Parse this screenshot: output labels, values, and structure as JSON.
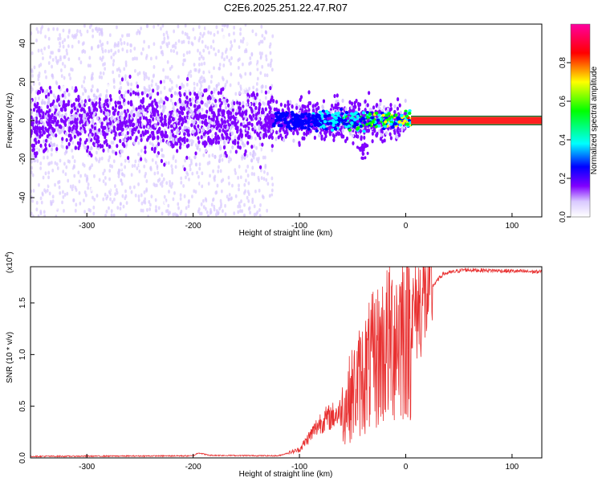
{
  "chart_data": [
    {
      "type": "heatmap",
      "title": "C2E6.2025.251.22.47.R07",
      "xlabel": "Height of straight line (km)",
      "ylabel": "Frequency (Hz)",
      "xlim": [
        -353,
        128
      ],
      "ylim": [
        -50,
        50
      ],
      "xticks": [
        -300,
        -200,
        -100,
        0,
        100
      ],
      "yticks": [
        -40,
        -20,
        0,
        20,
        40
      ],
      "colorbar": {
        "label": "Normalized spectral amplitude",
        "range": [
          0,
          1
        ],
        "ticks": [
          0.0,
          0.2,
          0.4,
          0.6,
          0.8
        ],
        "colors": [
          "#ffffff",
          "#d9c9ff",
          "#8000ff",
          "#0000ff",
          "#00ffff",
          "#00ff00",
          "#ffff00",
          "#ff0000",
          "#ff00a0"
        ]
      },
      "features": {
        "noise_region_x": [
          -353,
          -125
        ],
        "noise_freq_spread": 50,
        "band_center_freq": 0,
        "band_halfwidth": 8,
        "narrow_line_x": [
          5,
          128
        ],
        "narrow_line_halfwidth": 1.5
      }
    },
    {
      "type": "line",
      "xlabel": "Height of straight line (km)",
      "ylabel": "SNR (10 * v/v)",
      "y_scale_label": "(x10",
      "y_scale_exponent": "4",
      "xlim": [
        -353,
        128
      ],
      "ylim": [
        0,
        1.85
      ],
      "xticks": [
        -300,
        -200,
        -100,
        0,
        100
      ],
      "yticks": [
        0.0,
        0.5,
        1.0,
        1.5
      ],
      "ytick_labels": [
        "0.0",
        "0.5",
        "1.0",
        "1.5"
      ],
      "color": "#e83030",
      "series_keypoints": [
        {
          "x": -353,
          "y": 0.015
        },
        {
          "x": -200,
          "y": 0.02
        },
        {
          "x": -195,
          "y": 0.05
        },
        {
          "x": -185,
          "y": 0.025
        },
        {
          "x": -120,
          "y": 0.02
        },
        {
          "x": -100,
          "y": 0.08
        },
        {
          "x": -80,
          "y": 0.35
        },
        {
          "x": -60,
          "y": 0.45
        },
        {
          "x": -40,
          "y": 0.8
        },
        {
          "x": -25,
          "y": 1.0
        },
        {
          "x": -10,
          "y": 1.2
        },
        {
          "x": 5,
          "y": 1.35
        },
        {
          "x": 20,
          "y": 1.6
        },
        {
          "x": 35,
          "y": 1.78
        },
        {
          "x": 55,
          "y": 1.82
        },
        {
          "x": 128,
          "y": 1.8
        }
      ]
    }
  ]
}
